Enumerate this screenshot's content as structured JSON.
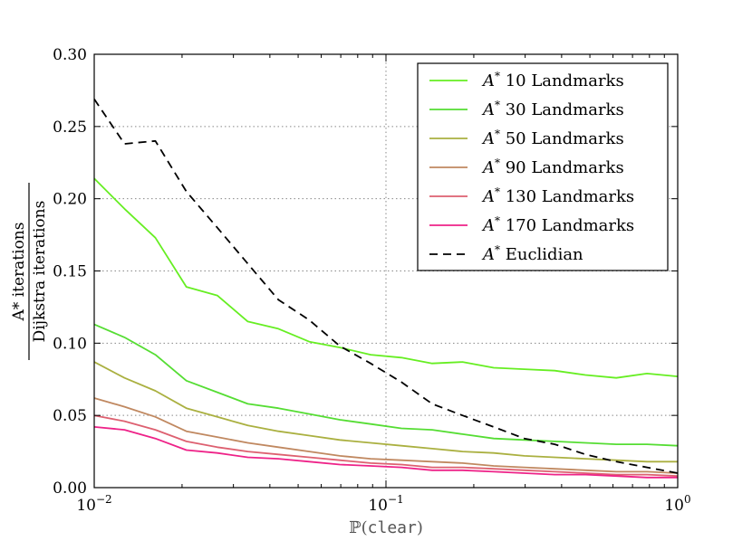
{
  "chart_data": {
    "type": "line",
    "xscale": "log",
    "xlim": [
      0.01,
      1
    ],
    "ylim": [
      0,
      0.3
    ],
    "grid": true,
    "legend_position": "top-right",
    "x_tick_labels": [
      {
        "base": "10",
        "exp": "−2",
        "value": 0.01
      },
      {
        "base": "10",
        "exp": "−1",
        "value": 0.1
      },
      {
        "base": "10",
        "exp": "0",
        "value": 1
      }
    ],
    "y_tick_labels": [
      "0.00",
      "0.05",
      "0.10",
      "0.15",
      "0.20",
      "0.25",
      "0.30"
    ],
    "y_ticks": [
      0,
      0.05,
      0.1,
      0.15,
      0.2,
      0.25,
      0.3
    ],
    "xlabel": {
      "prefix": "ℙ(",
      "mono": "clear",
      "suffix": ")"
    },
    "ylabel": {
      "numerator": "A* iterations",
      "denominator": "Dijkstra iterations"
    },
    "x": [
      0.01,
      0.0127,
      0.0162,
      0.0207,
      0.0264,
      0.0336,
      0.0428,
      0.0546,
      0.0695,
      0.0886,
      0.113,
      0.144,
      0.183,
      0.234,
      0.298,
      0.379,
      0.483,
      0.616,
      0.785,
      1.0
    ],
    "series": [
      {
        "name": "10 Landmarks",
        "prefix": "A*",
        "color": "#66ee22",
        "style": "solid",
        "values": [
          0.214,
          0.193,
          0.173,
          0.139,
          0.133,
          0.115,
          0.11,
          0.101,
          0.097,
          0.092,
          0.09,
          0.086,
          0.087,
          0.083,
          0.082,
          0.081,
          0.078,
          0.076,
          0.079,
          0.077
        ]
      },
      {
        "name": "30 Landmarks",
        "prefix": "A*",
        "color": "#55dd33",
        "style": "solid",
        "values": [
          0.113,
          0.104,
          0.092,
          0.074,
          0.066,
          0.058,
          0.055,
          0.051,
          0.047,
          0.044,
          0.041,
          0.04,
          0.037,
          0.034,
          0.033,
          0.032,
          0.031,
          0.03,
          0.03,
          0.029
        ]
      },
      {
        "name": "50 Landmarks",
        "prefix": "A*",
        "color": "#aab040",
        "style": "solid",
        "values": [
          0.087,
          0.076,
          0.067,
          0.055,
          0.049,
          0.043,
          0.039,
          0.036,
          0.033,
          0.031,
          0.029,
          0.027,
          0.025,
          0.024,
          0.022,
          0.021,
          0.02,
          0.019,
          0.018,
          0.018
        ]
      },
      {
        "name": "90 Landmarks",
        "prefix": "A*",
        "color": "#c08860",
        "style": "solid",
        "values": [
          0.062,
          0.056,
          0.049,
          0.039,
          0.035,
          0.031,
          0.028,
          0.025,
          0.022,
          0.02,
          0.019,
          0.018,
          0.017,
          0.015,
          0.014,
          0.013,
          0.012,
          0.011,
          0.011,
          0.01
        ]
      },
      {
        "name": "130 Landmarks",
        "prefix": "A*",
        "color": "#dd6070",
        "style": "solid",
        "values": [
          0.05,
          0.046,
          0.04,
          0.032,
          0.028,
          0.025,
          0.023,
          0.021,
          0.019,
          0.017,
          0.016,
          0.014,
          0.014,
          0.013,
          0.012,
          0.011,
          0.01,
          0.009,
          0.009,
          0.008
        ]
      },
      {
        "name": "170 Landmarks",
        "prefix": "A*",
        "color": "#ee2288",
        "style": "solid",
        "values": [
          0.042,
          0.04,
          0.034,
          0.026,
          0.024,
          0.021,
          0.02,
          0.018,
          0.016,
          0.015,
          0.014,
          0.012,
          0.012,
          0.011,
          0.01,
          0.009,
          0.009,
          0.008,
          0.007,
          0.007
        ]
      },
      {
        "name": "Euclidian",
        "prefix": "A*",
        "color": "#000000",
        "style": "dashed",
        "values": [
          0.269,
          0.238,
          0.24,
          0.205,
          0.18,
          0.155,
          0.13,
          0.116,
          0.098,
          0.086,
          0.073,
          0.058,
          0.05,
          0.042,
          0.034,
          0.03,
          0.023,
          0.018,
          0.014,
          0.01
        ]
      }
    ]
  }
}
